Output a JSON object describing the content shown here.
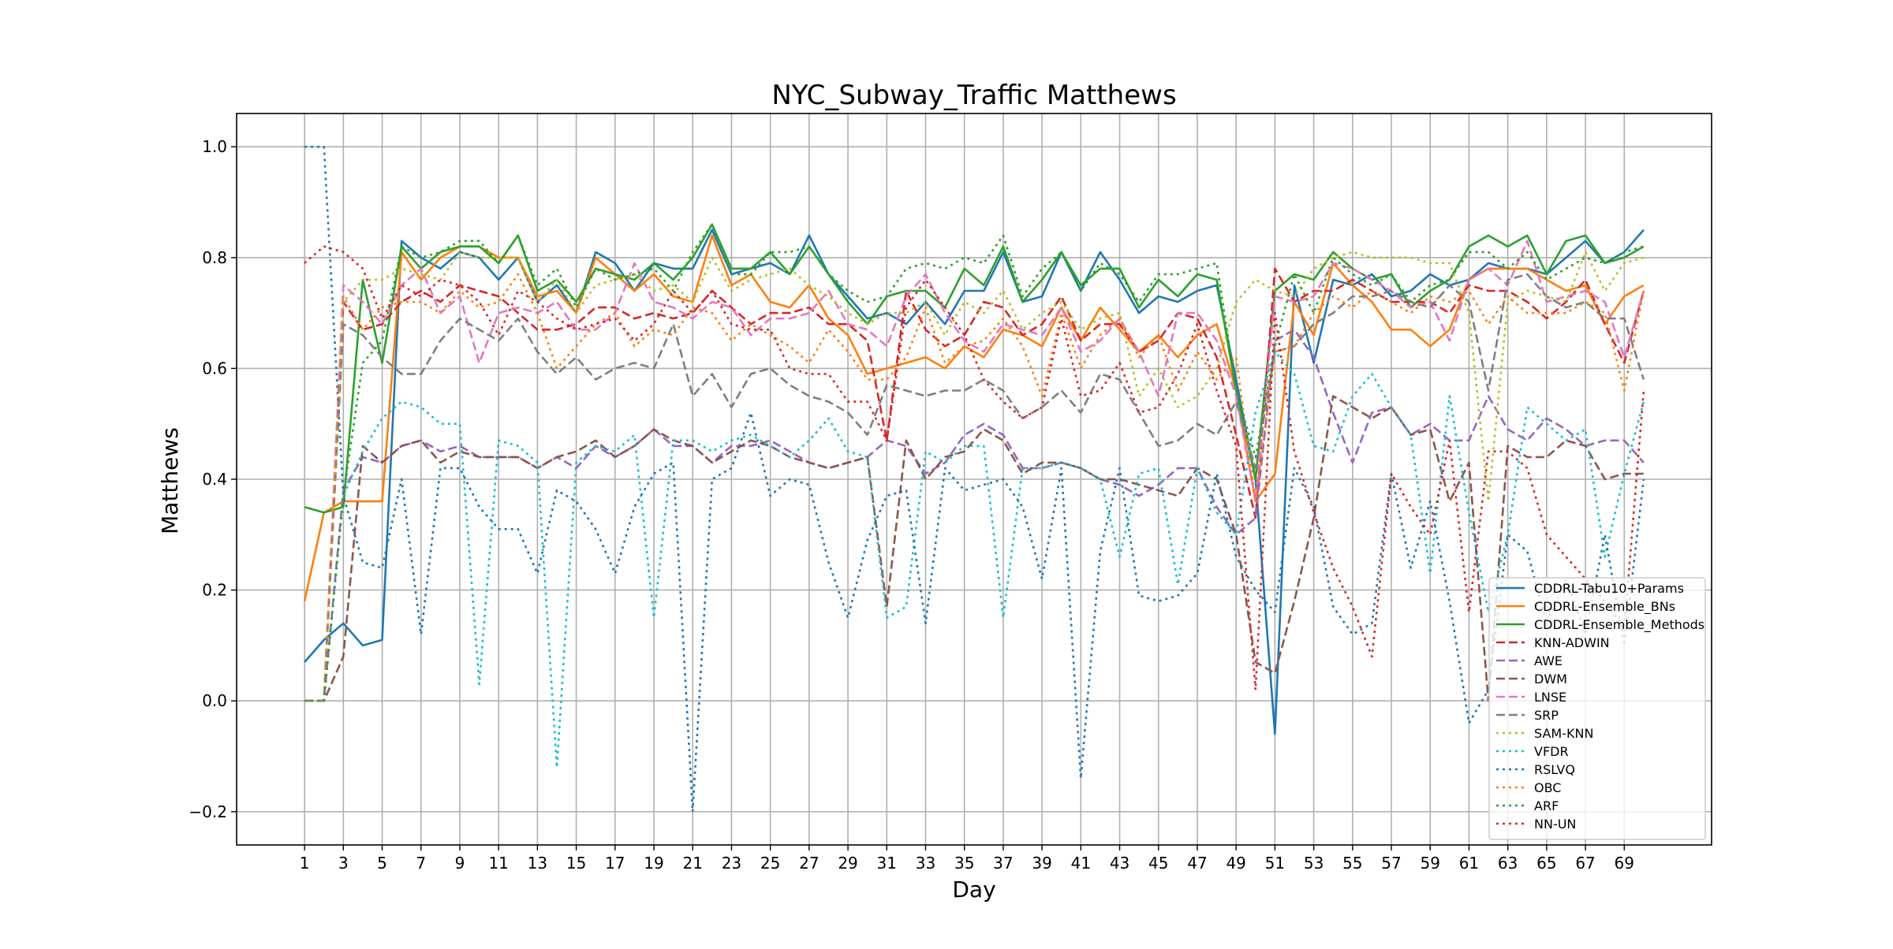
{
  "chart_data": {
    "type": "line",
    "title": "NYC_Subway_Traffic Matthews",
    "xlabel": "Day",
    "ylabel": "Matthews",
    "xlim": [
      -2.5,
      73.5
    ],
    "ylim": [
      -0.26,
      1.06
    ],
    "xticks": [
      1,
      3,
      5,
      7,
      9,
      11,
      13,
      15,
      17,
      19,
      21,
      23,
      25,
      27,
      29,
      31,
      33,
      35,
      37,
      39,
      41,
      43,
      45,
      47,
      49,
      51,
      53,
      55,
      57,
      59,
      61,
      63,
      65,
      67,
      69
    ],
    "yticks": [
      -0.2,
      0.0,
      0.2,
      0.4,
      0.6,
      0.8,
      1.0
    ],
    "ytick_labels": [
      "−0.2",
      "0.0",
      "0.2",
      "0.4",
      "0.6",
      "0.8",
      "1.0"
    ],
    "grid": true,
    "legend_position": "lower-right",
    "x": [
      1,
      2,
      3,
      4,
      5,
      6,
      7,
      8,
      9,
      10,
      11,
      12,
      13,
      14,
      15,
      16,
      17,
      18,
      19,
      20,
      21,
      22,
      23,
      24,
      25,
      26,
      27,
      28,
      29,
      30,
      31,
      32,
      33,
      34,
      35,
      36,
      37,
      38,
      39,
      40,
      41,
      42,
      43,
      44,
      45,
      46,
      47,
      48,
      49,
      50,
      51,
      52,
      53,
      54,
      55,
      56,
      57,
      58,
      59,
      60,
      61,
      62,
      63,
      64,
      65,
      66,
      67,
      68,
      69,
      70
    ],
    "series": [
      {
        "name": "CDDRL-Tabu10+Params",
        "color": "#1f77b4",
        "dash": "solid",
        "values": [
          0.07,
          0.11,
          0.14,
          0.1,
          0.11,
          0.83,
          0.8,
          0.78,
          0.81,
          0.8,
          0.76,
          0.8,
          0.72,
          0.75,
          0.7,
          0.81,
          0.79,
          0.74,
          0.79,
          0.78,
          0.78,
          0.85,
          0.77,
          0.78,
          0.79,
          0.77,
          0.84,
          0.77,
          0.73,
          0.69,
          0.7,
          0.68,
          0.72,
          0.68,
          0.74,
          0.74,
          0.81,
          0.72,
          0.73,
          0.81,
          0.74,
          0.81,
          0.76,
          0.7,
          0.73,
          0.72,
          0.74,
          0.75,
          0.58,
          0.4,
          -0.06,
          0.75,
          0.61,
          0.76,
          0.75,
          0.77,
          0.73,
          0.74,
          0.77,
          0.75,
          0.76,
          0.79,
          0.78,
          0.78,
          0.77,
          0.8,
          0.83,
          0.79,
          0.81,
          0.85
        ]
      },
      {
        "name": "CDDRL-Ensemble_BNs",
        "color": "#ff7f0e",
        "dash": "solid",
        "values": [
          0.18,
          0.34,
          0.36,
          0.36,
          0.36,
          0.81,
          0.76,
          0.8,
          0.82,
          0.82,
          0.8,
          0.8,
          0.73,
          0.74,
          0.7,
          0.8,
          0.77,
          0.74,
          0.77,
          0.73,
          0.72,
          0.84,
          0.75,
          0.77,
          0.72,
          0.71,
          0.75,
          0.69,
          0.66,
          0.59,
          0.6,
          0.61,
          0.62,
          0.6,
          0.64,
          0.62,
          0.67,
          0.66,
          0.64,
          0.71,
          0.65,
          0.71,
          0.67,
          0.63,
          0.66,
          0.62,
          0.66,
          0.68,
          0.56,
          0.36,
          0.41,
          0.72,
          0.66,
          0.79,
          0.75,
          0.72,
          0.67,
          0.67,
          0.64,
          0.67,
          0.76,
          0.78,
          0.78,
          0.78,
          0.76,
          0.74,
          0.75,
          0.68,
          0.73,
          0.75
        ]
      },
      {
        "name": "CDDRL-Ensemble_Methods",
        "color": "#2ca02c",
        "dash": "solid",
        "values": [
          0.35,
          0.34,
          0.35,
          0.76,
          0.61,
          0.82,
          0.78,
          0.81,
          0.82,
          0.82,
          0.79,
          0.84,
          0.74,
          0.76,
          0.72,
          0.78,
          0.77,
          0.76,
          0.79,
          0.76,
          0.8,
          0.86,
          0.78,
          0.78,
          0.81,
          0.77,
          0.82,
          0.77,
          0.72,
          0.68,
          0.73,
          0.74,
          0.74,
          0.71,
          0.78,
          0.75,
          0.82,
          0.72,
          0.76,
          0.81,
          0.75,
          0.78,
          0.78,
          0.71,
          0.76,
          0.73,
          0.77,
          0.76,
          0.56,
          0.4,
          0.74,
          0.77,
          0.76,
          0.81,
          0.78,
          0.76,
          0.77,
          0.71,
          0.74,
          0.76,
          0.82,
          0.84,
          0.82,
          0.84,
          0.77,
          0.83,
          0.84,
          0.79,
          0.8,
          0.82
        ]
      },
      {
        "name": "KNN-ADWIN",
        "color": "#d62728",
        "dash": "dashed",
        "values": [
          0.0,
          0.0,
          0.72,
          0.67,
          0.68,
          0.72,
          0.74,
          0.72,
          0.75,
          0.74,
          0.73,
          0.7,
          0.67,
          0.67,
          0.68,
          0.71,
          0.71,
          0.69,
          0.7,
          0.69,
          0.7,
          0.74,
          0.71,
          0.68,
          0.7,
          0.7,
          0.71,
          0.68,
          0.68,
          0.65,
          0.47,
          0.74,
          0.67,
          0.64,
          0.66,
          0.72,
          0.71,
          0.66,
          0.68,
          0.73,
          0.65,
          0.68,
          0.68,
          0.63,
          0.65,
          0.7,
          0.69,
          0.62,
          0.48,
          0.33,
          0.78,
          0.72,
          0.74,
          0.74,
          0.76,
          0.74,
          0.72,
          0.72,
          0.72,
          0.7,
          0.75,
          0.74,
          0.74,
          0.72,
          0.69,
          0.72,
          0.76,
          0.68,
          0.61,
          0.74
        ]
      },
      {
        "name": "AWE",
        "color": "#9467bd",
        "dash": "dashed",
        "values": [
          0.0,
          0.0,
          0.38,
          0.44,
          0.43,
          0.46,
          0.47,
          0.45,
          0.46,
          0.44,
          0.44,
          0.44,
          0.42,
          0.44,
          0.42,
          0.46,
          0.44,
          0.46,
          0.49,
          0.46,
          0.46,
          0.43,
          0.46,
          0.46,
          0.47,
          0.45,
          0.43,
          0.42,
          0.43,
          0.44,
          0.47,
          0.46,
          0.41,
          0.43,
          0.48,
          0.5,
          0.48,
          0.42,
          0.42,
          0.43,
          0.42,
          0.4,
          0.39,
          0.37,
          0.39,
          0.42,
          0.42,
          0.35,
          0.3,
          0.33,
          0.65,
          0.67,
          0.62,
          0.52,
          0.43,
          0.52,
          0.53,
          0.48,
          0.5,
          0.47,
          0.47,
          0.55,
          0.49,
          0.47,
          0.51,
          0.49,
          0.46,
          0.47,
          0.47,
          0.43
        ]
      },
      {
        "name": "DWM",
        "color": "#8c564b",
        "dash": "dashed",
        "values": [
          0.0,
          0.0,
          0.08,
          0.46,
          0.43,
          0.46,
          0.47,
          0.43,
          0.45,
          0.44,
          0.44,
          0.44,
          0.42,
          0.44,
          0.45,
          0.47,
          0.44,
          0.46,
          0.49,
          0.47,
          0.46,
          0.43,
          0.45,
          0.47,
          0.46,
          0.44,
          0.43,
          0.42,
          0.43,
          0.44,
          0.17,
          0.47,
          0.4,
          0.44,
          0.45,
          0.49,
          0.47,
          0.41,
          0.43,
          0.43,
          0.42,
          0.4,
          0.4,
          0.39,
          0.38,
          0.37,
          0.42,
          0.4,
          0.3,
          0.07,
          0.05,
          0.18,
          0.33,
          0.55,
          0.53,
          0.51,
          0.53,
          0.48,
          0.49,
          0.36,
          0.43,
          0.0,
          0.46,
          0.44,
          0.44,
          0.47,
          0.46,
          0.4,
          0.41,
          0.41
        ]
      },
      {
        "name": "LNSE",
        "color": "#e377c2",
        "dash": "dashed",
        "values": [
          0.0,
          0.0,
          0.75,
          0.72,
          0.68,
          0.75,
          0.78,
          0.7,
          0.73,
          0.61,
          0.7,
          0.71,
          0.7,
          0.72,
          0.67,
          0.67,
          0.7,
          0.79,
          0.72,
          0.71,
          0.69,
          0.72,
          0.71,
          0.66,
          0.69,
          0.69,
          0.7,
          0.74,
          0.68,
          0.67,
          0.64,
          0.73,
          0.77,
          0.7,
          0.65,
          0.63,
          0.68,
          0.67,
          0.66,
          0.71,
          0.63,
          0.65,
          0.69,
          0.63,
          0.55,
          0.7,
          0.7,
          0.65,
          0.55,
          0.36,
          0.73,
          0.72,
          0.73,
          0.79,
          0.78,
          0.76,
          0.74,
          0.71,
          0.72,
          0.65,
          0.76,
          0.78,
          0.75,
          0.83,
          0.72,
          0.73,
          0.74,
          0.72,
          0.62,
          0.74
        ]
      },
      {
        "name": "SRP",
        "color": "#7f7f7f",
        "dash": "dashed",
        "values": [
          0.0,
          0.0,
          0.68,
          0.66,
          0.62,
          0.59,
          0.59,
          0.65,
          0.69,
          0.67,
          0.65,
          0.69,
          0.63,
          0.59,
          0.62,
          0.58,
          0.6,
          0.61,
          0.6,
          0.68,
          0.55,
          0.59,
          0.53,
          0.59,
          0.6,
          0.57,
          0.55,
          0.54,
          0.52,
          0.48,
          0.57,
          0.56,
          0.55,
          0.56,
          0.56,
          0.58,
          0.56,
          0.51,
          0.53,
          0.56,
          0.52,
          0.59,
          0.58,
          0.52,
          0.46,
          0.47,
          0.5,
          0.48,
          0.54,
          0.42,
          0.63,
          0.64,
          0.68,
          0.7,
          0.73,
          0.73,
          0.74,
          0.72,
          0.71,
          0.75,
          0.72,
          0.56,
          0.76,
          0.77,
          0.73,
          0.71,
          0.72,
          0.69,
          0.69,
          0.58
        ]
      },
      {
        "name": "SAM-KNN",
        "color": "#bcbd22",
        "dash": "dotted",
        "values": [
          0.0,
          0.0,
          0.72,
          0.76,
          0.76,
          0.78,
          0.77,
          0.76,
          0.81,
          0.8,
          0.8,
          0.8,
          0.72,
          0.76,
          0.7,
          0.75,
          0.76,
          0.77,
          0.74,
          0.75,
          0.72,
          0.8,
          0.74,
          0.76,
          0.77,
          0.78,
          0.75,
          0.73,
          0.7,
          0.68,
          0.7,
          0.7,
          0.72,
          0.66,
          0.72,
          0.7,
          0.74,
          0.67,
          0.7,
          0.72,
          0.67,
          0.69,
          0.7,
          0.55,
          0.6,
          0.53,
          0.55,
          0.6,
          0.72,
          0.76,
          0.74,
          0.73,
          0.78,
          0.8,
          0.81,
          0.8,
          0.8,
          0.8,
          0.79,
          0.79,
          0.7,
          0.36,
          0.72,
          0.74,
          0.73,
          0.72,
          0.81,
          0.74,
          0.79,
          0.8
        ]
      },
      {
        "name": "VFDR",
        "color": "#17becf",
        "dash": "dotted",
        "values": [
          0.0,
          0.0,
          0.37,
          0.45,
          0.51,
          0.54,
          0.53,
          0.5,
          0.5,
          0.03,
          0.47,
          0.46,
          0.43,
          -0.12,
          0.43,
          0.46,
          0.45,
          0.48,
          0.15,
          0.47,
          0.47,
          0.45,
          0.47,
          0.48,
          0.46,
          0.44,
          0.47,
          0.51,
          0.45,
          0.44,
          0.15,
          0.17,
          0.45,
          0.43,
          0.46,
          0.46,
          0.15,
          0.42,
          0.42,
          0.43,
          0.42,
          0.4,
          0.26,
          0.41,
          0.42,
          0.21,
          0.42,
          0.34,
          0.3,
          0.52,
          0.63,
          0.59,
          0.46,
          0.45,
          0.55,
          0.59,
          0.53,
          0.48,
          0.23,
          0.55,
          0.34,
          0.16,
          0.3,
          0.53,
          0.5,
          0.47,
          0.49,
          0.26,
          0.41,
          0.54
        ]
      },
      {
        "name": "RSLVQ",
        "color": "#1f77b4",
        "dash": "dotted",
        "values": [
          1.0,
          1.0,
          0.37,
          0.25,
          0.24,
          0.4,
          0.12,
          0.42,
          0.42,
          0.35,
          0.31,
          0.31,
          0.23,
          0.38,
          0.36,
          0.31,
          0.23,
          0.35,
          0.41,
          0.43,
          -0.2,
          0.4,
          0.42,
          0.52,
          0.37,
          0.4,
          0.39,
          0.25,
          0.15,
          0.29,
          0.37,
          0.38,
          0.14,
          0.42,
          0.38,
          0.39,
          0.4,
          0.35,
          0.22,
          0.42,
          -0.14,
          0.27,
          0.42,
          0.19,
          0.18,
          0.19,
          0.23,
          0.41,
          0.26,
          0.2,
          0.16,
          0.42,
          0.35,
          0.17,
          0.12,
          0.14,
          0.41,
          0.24,
          0.36,
          0.18,
          -0.04,
          0.02,
          0.3,
          0.27,
          0.14,
          0.22,
          0.12,
          0.3,
          0.1,
          0.4
        ]
      },
      {
        "name": "OBC",
        "color": "#ff7f0e",
        "dash": "dotted",
        "values": [
          0.0,
          0.0,
          0.73,
          0.67,
          0.71,
          0.72,
          0.72,
          0.7,
          0.74,
          0.71,
          0.72,
          0.77,
          0.7,
          0.6,
          0.64,
          0.68,
          0.7,
          0.64,
          0.67,
          0.66,
          0.71,
          0.7,
          0.65,
          0.68,
          0.66,
          0.64,
          0.61,
          0.67,
          0.63,
          0.58,
          0.58,
          0.62,
          0.71,
          0.61,
          0.64,
          0.65,
          0.69,
          0.64,
          0.55,
          0.7,
          0.6,
          0.66,
          0.69,
          0.62,
          0.66,
          0.56,
          0.63,
          0.58,
          0.62,
          0.36,
          0.63,
          0.64,
          0.7,
          0.73,
          0.71,
          0.74,
          0.72,
          0.7,
          0.73,
          0.72,
          0.74,
          0.68,
          0.73,
          0.7,
          0.7,
          0.7,
          0.72,
          0.7,
          0.56,
          0.74
        ]
      },
      {
        "name": "ARF",
        "color": "#2ca02c",
        "dash": "dotted",
        "values": [
          0.0,
          0.0,
          0.37,
          0.61,
          0.65,
          0.82,
          0.8,
          0.81,
          0.83,
          0.83,
          0.79,
          0.84,
          0.75,
          0.78,
          0.71,
          0.78,
          0.76,
          0.77,
          0.78,
          0.74,
          0.81,
          0.86,
          0.77,
          0.77,
          0.81,
          0.81,
          0.82,
          0.77,
          0.74,
          0.72,
          0.73,
          0.78,
          0.79,
          0.78,
          0.8,
          0.79,
          0.84,
          0.73,
          0.78,
          0.81,
          0.74,
          0.79,
          0.77,
          0.72,
          0.77,
          0.77,
          0.78,
          0.79,
          0.56,
          0.44,
          0.64,
          0.77,
          0.7,
          0.8,
          0.77,
          0.75,
          0.77,
          0.72,
          0.75,
          0.76,
          0.81,
          0.81,
          0.78,
          0.81,
          0.76,
          0.78,
          0.8,
          0.79,
          0.81,
          0.82
        ]
      },
      {
        "name": "NN-UN",
        "color": "#d62728",
        "dash": "dotted",
        "values": [
          0.79,
          0.82,
          0.81,
          0.78,
          0.69,
          0.75,
          0.73,
          0.76,
          0.75,
          0.72,
          0.66,
          0.74,
          0.72,
          0.69,
          0.67,
          0.68,
          0.69,
          0.65,
          0.68,
          0.74,
          0.7,
          0.74,
          0.68,
          0.67,
          0.67,
          0.6,
          0.59,
          0.59,
          0.54,
          0.54,
          0.47,
          0.71,
          0.76,
          0.71,
          0.66,
          0.58,
          0.54,
          0.51,
          0.53,
          0.69,
          0.55,
          0.56,
          0.61,
          0.52,
          0.53,
          0.59,
          0.68,
          0.56,
          0.46,
          0.02,
          0.7,
          0.45,
          0.34,
          0.24,
          0.17,
          0.08,
          0.41,
          0.35,
          0.3,
          0.47,
          0.16,
          0.45,
          0.45,
          0.42,
          0.3,
          0.26,
          0.22,
          0.18,
          0.13,
          0.56
        ]
      }
    ]
  }
}
